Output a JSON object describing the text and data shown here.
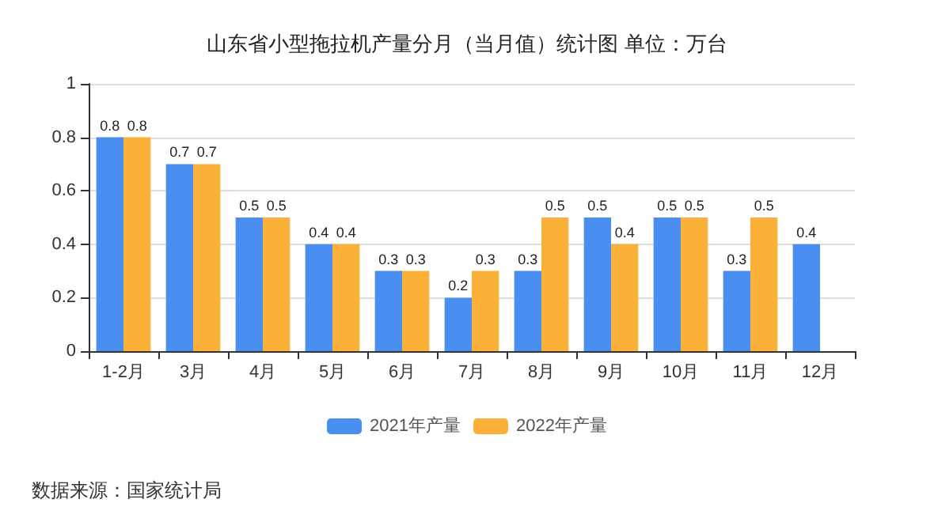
{
  "chart_data": {
    "type": "bar",
    "title": "山东省小型拖拉机产量分月（当月值）统计图 单位：万台",
    "categories": [
      "1-2月",
      "3月",
      "4月",
      "5月",
      "6月",
      "7月",
      "8月",
      "9月",
      "10月",
      "11月",
      "12月"
    ],
    "series": [
      {
        "name": "2021年产量",
        "color": "#4a8ef0",
        "values": [
          0.8,
          0.7,
          0.5,
          0.4,
          0.3,
          0.2,
          0.3,
          0.5,
          0.5,
          0.3,
          0.4
        ]
      },
      {
        "name": "2022年产量",
        "color": "#fbb03a",
        "values": [
          0.8,
          0.7,
          0.5,
          0.4,
          0.3,
          0.3,
          0.5,
          0.4,
          0.5,
          0.5,
          null
        ]
      }
    ],
    "ylim": [
      0,
      1
    ],
    "yticks": [
      0,
      0.2,
      0.4,
      0.6,
      0.8,
      1
    ],
    "grid": "y",
    "legend": "bottom",
    "data_labels": true,
    "annotations": [
      "数据来源：国家统计局"
    ]
  }
}
